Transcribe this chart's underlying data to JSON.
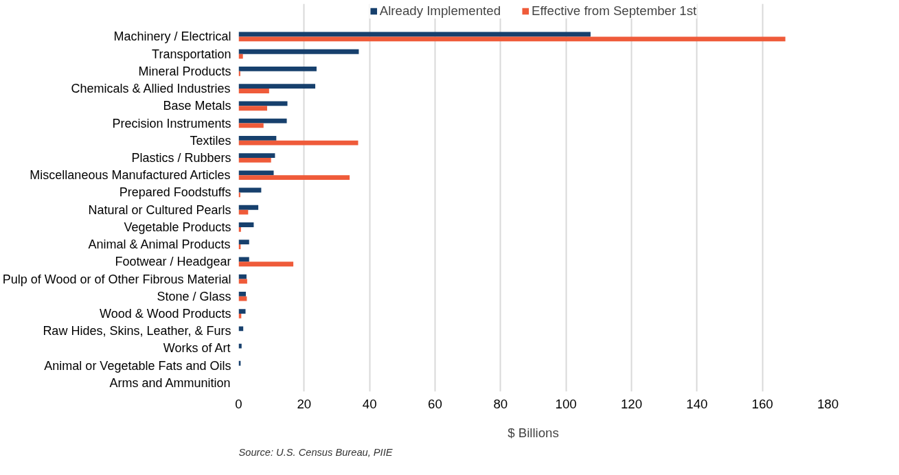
{
  "chart_data": {
    "type": "bar",
    "orientation": "horizontal",
    "xlabel": "$ Billions",
    "categories": [
      "Machinery / Electrical",
      "Transportation",
      "Mineral Products",
      "Chemicals & Allied Industries",
      "Base Metals",
      "Precision Instruments",
      "Textiles",
      "Plastics / Rubbers",
      "Miscellaneous Manufactured Articles",
      "Prepared Foodstuffs",
      "Natural or Cultured Pearls",
      "Vegetable Products",
      "Animal & Animal Products",
      "Footwear / Headgear",
      "Pulp of Wood or of Other Fibrous Material",
      "Stone / Glass",
      "Wood & Wood Products",
      "Raw Hides, Skins, Leather, & Furs",
      "Works of Art",
      "Animal or Vegetable Fats and Oils",
      "Arms and Ammunition"
    ],
    "series": [
      {
        "name": "Already Implemented",
        "color": "#17406d",
        "values": [
          107.5,
          36.7,
          23.8,
          23.4,
          14.9,
          14.7,
          11.5,
          11.1,
          10.7,
          6.9,
          6.0,
          4.6,
          3.2,
          3.2,
          2.4,
          2.2,
          2.1,
          1.4,
          0.9,
          0.6,
          null
        ]
      },
      {
        "name": "Effective from September 1st",
        "color": "#ef5b3a",
        "values": [
          167.0,
          1.3,
          0.5,
          9.3,
          8.7,
          7.6,
          36.5,
          9.9,
          33.9,
          0.5,
          2.9,
          0.7,
          0.6,
          16.7,
          2.6,
          2.5,
          0.8,
          0.0,
          null,
          0.0,
          null
        ]
      }
    ],
    "xlim": [
      0,
      180
    ],
    "xticks": [
      0,
      20,
      40,
      60,
      80,
      100,
      120,
      140,
      160,
      180
    ],
    "grid": "x",
    "legend": "top",
    "annotations": [
      "Source: U.S. Census Bureau, PIIE"
    ]
  }
}
